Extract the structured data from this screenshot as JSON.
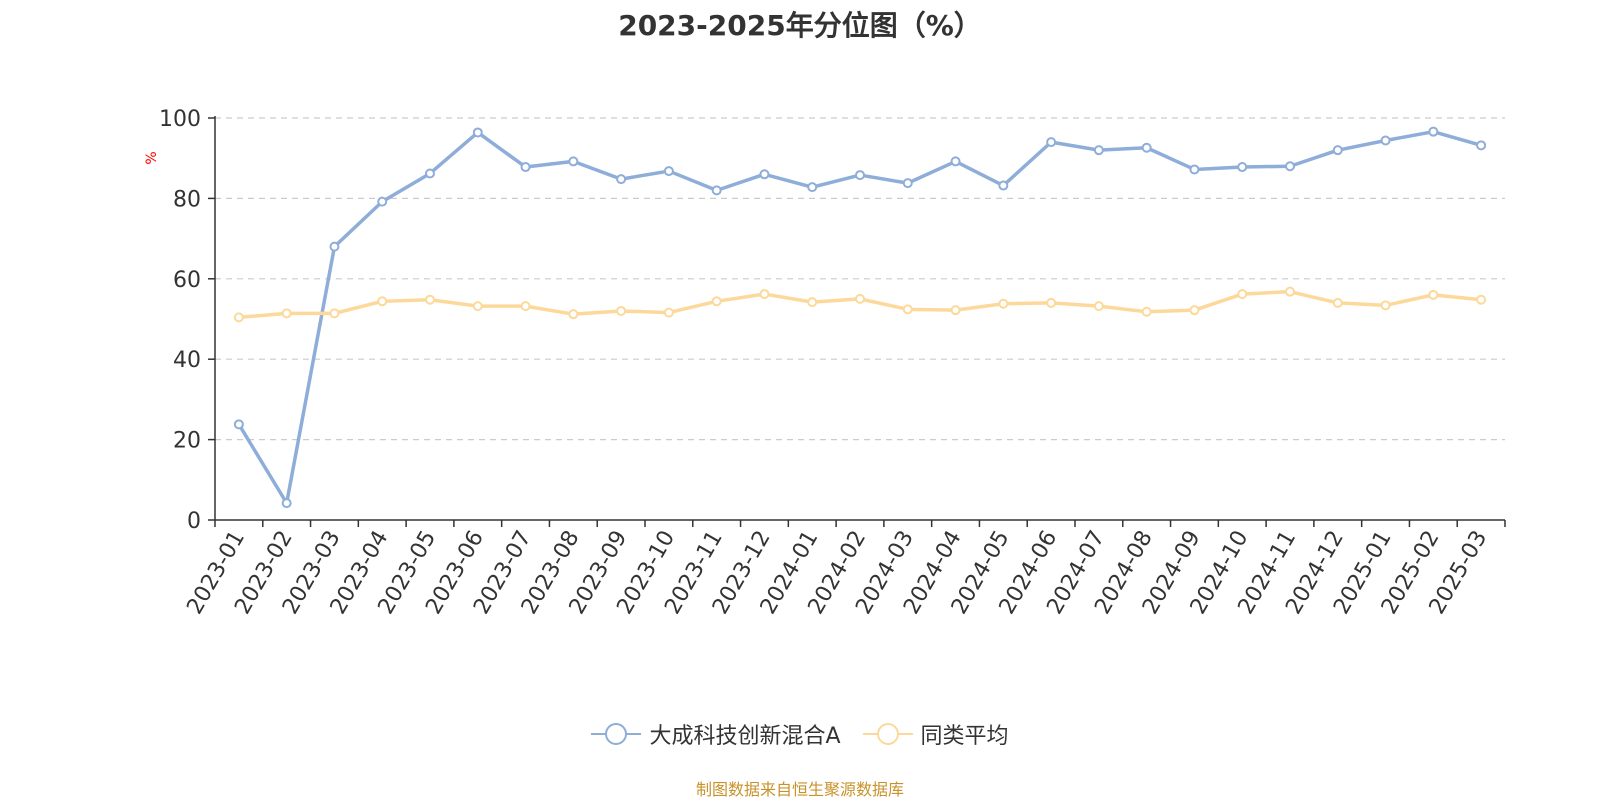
{
  "chart_data": {
    "type": "line",
    "title": "2023-2025年分位图（%）",
    "ylabel": "%",
    "ylim": [
      0,
      100
    ],
    "yticks": [
      0,
      20,
      40,
      60,
      80,
      100
    ],
    "grid": true,
    "legend_position": "bottom",
    "categories": [
      "2023-01",
      "2023-02",
      "2023-03",
      "2023-04",
      "2023-05",
      "2023-06",
      "2023-07",
      "2023-08",
      "2023-09",
      "2023-10",
      "2023-11",
      "2023-12",
      "2024-01",
      "2024-02",
      "2024-03",
      "2024-04",
      "2024-05",
      "2024-06",
      "2024-07",
      "2024-08",
      "2024-09",
      "2024-10",
      "2024-11",
      "2024-12",
      "2025-01",
      "2025-02",
      "2025-03"
    ],
    "series": [
      {
        "name": "大成科技创新混合A",
        "color": "#8eadd8",
        "values": [
          23.8,
          4.2,
          68.0,
          79.2,
          86.2,
          96.4,
          87.8,
          89.2,
          84.8,
          86.8,
          82.0,
          86.0,
          82.8,
          85.8,
          83.8,
          89.2,
          83.2,
          94.0,
          92.0,
          92.6,
          87.2,
          87.8,
          88.0,
          92.0,
          94.4,
          96.6,
          93.2
        ]
      },
      {
        "name": "同类平均",
        "color": "#fcd99a",
        "values": [
          50.4,
          51.4,
          51.4,
          54.4,
          54.8,
          53.2,
          53.2,
          51.2,
          52.0,
          51.6,
          54.4,
          56.2,
          54.2,
          55.0,
          52.4,
          52.2,
          53.8,
          54.0,
          53.2,
          51.8,
          52.2,
          56.2,
          56.8,
          54.0,
          53.4,
          56.0,
          54.8
        ]
      }
    ]
  },
  "source_text": "制图数据来自恒生聚源数据库"
}
